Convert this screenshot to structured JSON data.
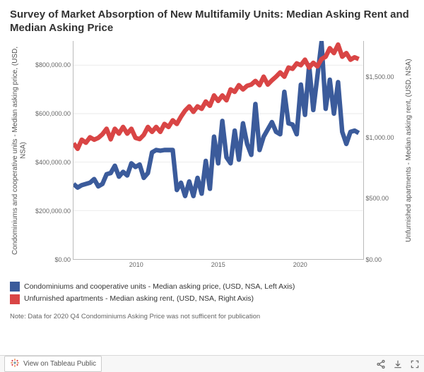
{
  "title": "Survey of Market Absorption of New Multifamily Units: Median Asking Rent and Median Asking Price",
  "footnote": "Note: Data for 2020 Q4 Condominiums Asking Price was not sufficent for publication",
  "legend": {
    "series1": "Condominiums and cooperative units - Median asking price, (USD, NSA, Left Axis)",
    "series2": "Unfurnished apartments - Median asking rent, (USD, NSA, Right Axis)"
  },
  "y_left": {
    "label": "Condominiums and cooperative units - Median asking price, (USD, NSA)",
    "min": 0,
    "max": 900000,
    "ticks": [
      "$800,000.00",
      "$600,000.00",
      "$400,000.00",
      "$200,000.00",
      "$0.00"
    ],
    "tick_vals": [
      800000,
      600000,
      400000,
      200000,
      0
    ]
  },
  "y_right": {
    "label": "Unfurnished apartments - Median asking rent, (USD, NSA)",
    "min": 0,
    "max": 1800,
    "ticks": [
      "$1,500.00",
      "$1,000.00",
      "$500.00",
      "$0.00"
    ],
    "tick_vals": [
      1500,
      1000,
      500,
      0
    ]
  },
  "x": {
    "min": 2006,
    "max": 2023.5,
    "ticks": [
      "2010",
      "2015",
      "2020"
    ],
    "tick_vals": [
      2010,
      2015,
      2020
    ]
  },
  "colors": {
    "condo": "#3b5b9b",
    "rent": "#d94545",
    "grid": "#e8e8e8",
    "bg": "#ffffff"
  },
  "line_width": 2,
  "condo_series": [
    [
      2006.0,
      310000
    ],
    [
      2006.25,
      295000
    ],
    [
      2006.5,
      305000
    ],
    [
      2006.75,
      310000
    ],
    [
      2007.0,
      315000
    ],
    [
      2007.25,
      330000
    ],
    [
      2007.5,
      300000
    ],
    [
      2007.75,
      310000
    ],
    [
      2008.0,
      350000
    ],
    [
      2008.25,
      355000
    ],
    [
      2008.5,
      385000
    ],
    [
      2008.75,
      340000
    ],
    [
      2009.0,
      360000
    ],
    [
      2009.25,
      345000
    ],
    [
      2009.5,
      395000
    ],
    [
      2009.75,
      380000
    ],
    [
      2010.0,
      390000
    ],
    [
      2010.25,
      335000
    ],
    [
      2010.5,
      355000
    ],
    [
      2010.75,
      440000
    ],
    [
      2011.0,
      450000
    ],
    [
      2011.25,
      447000
    ],
    [
      2011.5,
      450000
    ],
    [
      2011.75,
      450000
    ],
    [
      2012.0,
      450000
    ],
    [
      2012.25,
      285000
    ],
    [
      2012.5,
      315000
    ],
    [
      2012.75,
      260000
    ],
    [
      2013.0,
      320000
    ],
    [
      2013.25,
      260000
    ],
    [
      2013.5,
      335000
    ],
    [
      2013.75,
      270000
    ],
    [
      2014.0,
      405000
    ],
    [
      2014.25,
      290000
    ],
    [
      2014.5,
      505000
    ],
    [
      2014.75,
      395000
    ],
    [
      2015.0,
      570000
    ],
    [
      2015.25,
      420000
    ],
    [
      2015.5,
      395000
    ],
    [
      2015.75,
      530000
    ],
    [
      2016.0,
      410000
    ],
    [
      2016.25,
      560000
    ],
    [
      2016.5,
      475000
    ],
    [
      2016.75,
      430000
    ],
    [
      2017.0,
      640000
    ],
    [
      2017.25,
      450000
    ],
    [
      2017.5,
      505000
    ],
    [
      2017.75,
      535000
    ],
    [
      2018.0,
      565000
    ],
    [
      2018.25,
      525000
    ],
    [
      2018.5,
      515000
    ],
    [
      2018.75,
      690000
    ],
    [
      2019.0,
      560000
    ],
    [
      2019.25,
      555000
    ],
    [
      2019.5,
      515000
    ],
    [
      2019.75,
      720000
    ],
    [
      2020.0,
      595000
    ],
    [
      2020.25,
      800000
    ],
    [
      2020.5,
      615000
    ],
    [
      2021.0,
      895000
    ],
    [
      2021.25,
      620000
    ],
    [
      2021.5,
      740000
    ],
    [
      2021.75,
      600000
    ],
    [
      2022.0,
      730000
    ],
    [
      2022.25,
      525000
    ],
    [
      2022.5,
      475000
    ],
    [
      2022.75,
      525000
    ],
    [
      2023.0,
      530000
    ],
    [
      2023.25,
      520000
    ]
  ],
  "rent_series": [
    [
      2006.0,
      955
    ],
    [
      2006.25,
      910
    ],
    [
      2006.5,
      985
    ],
    [
      2006.75,
      960
    ],
    [
      2007.0,
      1005
    ],
    [
      2007.25,
      985
    ],
    [
      2007.5,
      1000
    ],
    [
      2007.75,
      1030
    ],
    [
      2008.0,
      1075
    ],
    [
      2008.25,
      988
    ],
    [
      2008.5,
      1075
    ],
    [
      2008.75,
      1035
    ],
    [
      2009.0,
      1090
    ],
    [
      2009.25,
      1035
    ],
    [
      2009.5,
      1075
    ],
    [
      2009.75,
      1000
    ],
    [
      2010.0,
      990
    ],
    [
      2010.25,
      1025
    ],
    [
      2010.5,
      1090
    ],
    [
      2010.75,
      1050
    ],
    [
      2011.0,
      1090
    ],
    [
      2011.25,
      1050
    ],
    [
      2011.5,
      1115
    ],
    [
      2011.75,
      1090
    ],
    [
      2012.0,
      1145
    ],
    [
      2012.25,
      1115
    ],
    [
      2012.5,
      1175
    ],
    [
      2012.75,
      1225
    ],
    [
      2013.0,
      1260
    ],
    [
      2013.25,
      1215
    ],
    [
      2013.5,
      1260
    ],
    [
      2013.75,
      1240
    ],
    [
      2014.0,
      1300
    ],
    [
      2014.25,
      1265
    ],
    [
      2014.5,
      1350
    ],
    [
      2014.75,
      1305
    ],
    [
      2015.0,
      1350
    ],
    [
      2015.25,
      1310
    ],
    [
      2015.5,
      1400
    ],
    [
      2015.75,
      1380
    ],
    [
      2016.0,
      1435
    ],
    [
      2016.25,
      1400
    ],
    [
      2016.5,
      1430
    ],
    [
      2016.75,
      1440
    ],
    [
      2017.0,
      1470
    ],
    [
      2017.25,
      1435
    ],
    [
      2017.5,
      1505
    ],
    [
      2017.75,
      1440
    ],
    [
      2018.0,
      1475
    ],
    [
      2018.25,
      1505
    ],
    [
      2018.5,
      1540
    ],
    [
      2018.75,
      1505
    ],
    [
      2019.0,
      1580
    ],
    [
      2019.25,
      1570
    ],
    [
      2019.5,
      1615
    ],
    [
      2019.75,
      1600
    ],
    [
      2020.0,
      1645
    ],
    [
      2020.25,
      1580
    ],
    [
      2020.5,
      1620
    ],
    [
      2020.75,
      1590
    ],
    [
      2021.0,
      1650
    ],
    [
      2021.25,
      1670
    ],
    [
      2021.5,
      1740
    ],
    [
      2021.75,
      1700
    ],
    [
      2022.0,
      1770
    ],
    [
      2022.25,
      1670
    ],
    [
      2022.5,
      1700
    ],
    [
      2022.75,
      1645
    ],
    [
      2023.0,
      1665
    ],
    [
      2023.25,
      1650
    ]
  ],
  "toolbar": {
    "view_label": "View on Tableau Public"
  }
}
